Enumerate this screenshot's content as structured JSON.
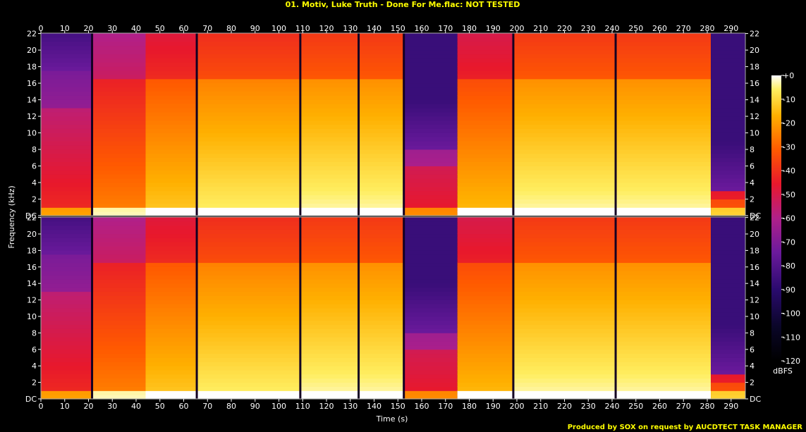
{
  "chart_data": {
    "type": "heatmap",
    "title": "01. Motiv, Luke Truth - Done For Me.flac: NOT TESTED",
    "xlabel": "Time (s)",
    "ylabel": "Frequency (kHz)",
    "footer": "Produced by SOX on request by AUCDTECT TASK MANAGER",
    "xlim": [
      0,
      296
    ],
    "ylim": [
      0,
      22.05
    ],
    "x_ticks": [
      0,
      10,
      20,
      30,
      40,
      50,
      60,
      70,
      80,
      90,
      100,
      110,
      120,
      130,
      140,
      150,
      160,
      170,
      180,
      190,
      200,
      210,
      220,
      230,
      240,
      250,
      260,
      270,
      280,
      290
    ],
    "y_ticks": [
      0,
      2,
      4,
      6,
      8,
      10,
      12,
      14,
      16,
      18,
      20,
      22
    ],
    "y_tick_labels": [
      "DC",
      "2",
      "4",
      "6",
      "8",
      "10",
      "12",
      "14",
      "16",
      "18",
      "20",
      "22"
    ],
    "channels": 2,
    "colorbar": {
      "label": "dBFS",
      "range": [
        -120,
        0
      ],
      "ticks": [
        0,
        -10,
        -20,
        -30,
        -40,
        -50,
        -60,
        -70,
        -80,
        -90,
        -100,
        -110,
        -120
      ],
      "tick_labels": [
        "+0",
        "-10",
        "-20",
        "-30",
        "-40",
        "-50",
        "-60",
        "-70",
        "-80",
        "-90",
        "-100",
        "-110",
        "-120"
      ]
    },
    "sections": [
      {
        "start": 0,
        "end": 21.5,
        "cutoff_khz": 17.5,
        "intensity": 0.48
      },
      {
        "start": 21.5,
        "end": 44,
        "cutoff_khz": 21.8,
        "intensity": 0.62
      },
      {
        "start": 44,
        "end": 65.5,
        "cutoff_khz": 21.8,
        "intensity": 0.72
      },
      {
        "start": 65.5,
        "end": 109,
        "cutoff_khz": 21.8,
        "intensity": 0.78
      },
      {
        "start": 109,
        "end": 133.5,
        "cutoff_khz": 21.8,
        "intensity": 0.8
      },
      {
        "start": 133.5,
        "end": 152.5,
        "cutoff_khz": 21.8,
        "intensity": 0.8
      },
      {
        "start": 152.5,
        "end": 175,
        "cutoff_khz": 8,
        "intensity": 0.45
      },
      {
        "start": 175,
        "end": 198.5,
        "cutoff_khz": 21.8,
        "intensity": 0.7
      },
      {
        "start": 198.5,
        "end": 241.5,
        "cutoff_khz": 21.8,
        "intensity": 0.8
      },
      {
        "start": 241.5,
        "end": 281.5,
        "cutoff_khz": 21.8,
        "intensity": 0.8
      },
      {
        "start": 281.5,
        "end": 296,
        "cutoff_khz": 3,
        "intensity": 0.55
      }
    ],
    "dark_lines": [
      21.5,
      65.5,
      109,
      133.5,
      152.5,
      198.5,
      241.5
    ]
  }
}
